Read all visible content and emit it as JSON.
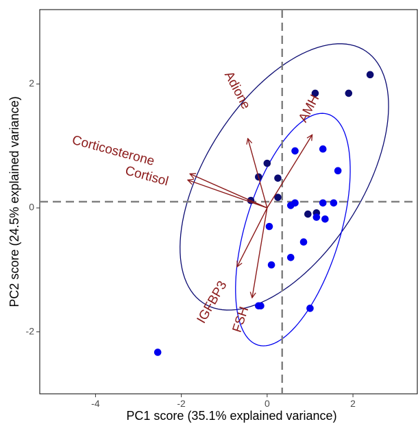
{
  "chart_data": {
    "type": "scatter",
    "title": "",
    "xlabel": "PC1 score (35.1% explained variance)",
    "ylabel": "PC2 score (24.5% explained variance)",
    "xlim": [
      -5.3,
      3.5
    ],
    "ylim": [
      -3.0,
      3.2
    ],
    "x_ticks": [
      -4,
      -2,
      0,
      2
    ],
    "y_ticks": [
      -2,
      0,
      2
    ],
    "x_tick_labels": [
      "-4",
      "-2",
      "0",
      "2"
    ],
    "y_tick_labels": [
      "-2",
      "0",
      "2"
    ],
    "grid": false,
    "reference_lines": {
      "vertical_x": 0.35,
      "horizontal_y": 0.1,
      "color": "#808080"
    },
    "series": [
      {
        "color": "#0b0b72",
        "points": [
          [
            1.12,
            1.85
          ],
          [
            1.9,
            1.85
          ],
          [
            2.4,
            2.15
          ],
          [
            0.0,
            0.72
          ],
          [
            -0.2,
            0.5
          ],
          [
            0.25,
            0.48
          ],
          [
            -0.38,
            0.12
          ],
          [
            0.25,
            0.17
          ],
          [
            0.95,
            -0.1
          ],
          [
            1.15,
            -0.08
          ]
        ],
        "ellipse": {
          "cx": 0.4,
          "cy": 0.5,
          "rx": 2.85,
          "ry": 1.55,
          "angle_deg": 38.5
        }
      },
      {
        "color": "#0000ee",
        "points": [
          [
            0.65,
            0.92
          ],
          [
            1.3,
            0.95
          ],
          [
            1.65,
            0.6
          ],
          [
            0.55,
            0.04
          ],
          [
            0.65,
            0.08
          ],
          [
            1.3,
            0.08
          ],
          [
            1.55,
            0.08
          ],
          [
            1.15,
            -0.15
          ],
          [
            1.35,
            -0.18
          ],
          [
            0.05,
            -0.3
          ],
          [
            0.85,
            -0.55
          ],
          [
            0.55,
            -0.8
          ],
          [
            0.1,
            -0.92
          ],
          [
            -0.15,
            -1.58
          ],
          [
            -0.2,
            -1.58
          ],
          [
            1.0,
            -1.62
          ],
          [
            -2.55,
            -2.33
          ]
        ],
        "ellipse": {
          "cx": 0.6,
          "cy": -0.35,
          "rx": 2.05,
          "ry": 1.05,
          "angle_deg": 62
        }
      }
    ],
    "loadings": {
      "color": "#8b1a1a",
      "origin": [
        0.0,
        0.0
      ],
      "vectors": [
        {
          "label": "Adione",
          "x": -0.45,
          "y": 1.12
        },
        {
          "label": "AMH",
          "x": 1.05,
          "y": 1.18
        },
        {
          "label": "Corticosterone",
          "x": -1.8,
          "y": 0.55
        },
        {
          "label": "Cortisol",
          "x": -1.85,
          "y": 0.45
        },
        {
          "label": "IGFBP3",
          "x": -0.7,
          "y": -0.95
        },
        {
          "label": "FSH",
          "x": -0.35,
          "y": -1.45
        }
      ]
    }
  }
}
